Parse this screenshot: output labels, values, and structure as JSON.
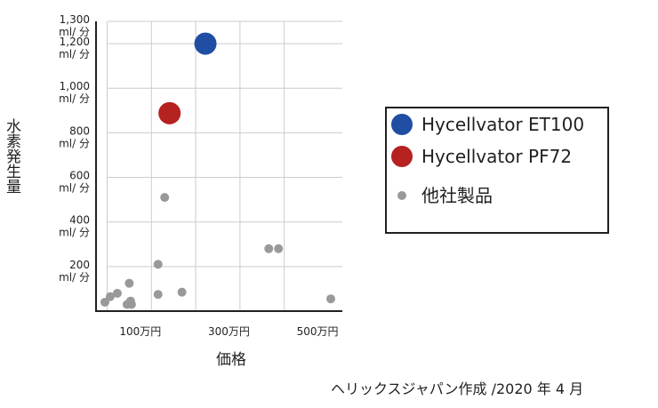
{
  "chart_data": {
    "type": "scatter",
    "title": "",
    "xlabel": "価格",
    "ylabel": "水素発生量",
    "xlim": [
      0,
      530
    ],
    "ylim": [
      0,
      1300
    ],
    "grid": true,
    "x_ticks": [
      {
        "value": 100,
        "label": "100万円"
      },
      {
        "value": 300,
        "label": "300万円"
      },
      {
        "value": 500,
        "label": "500万円"
      }
    ],
    "x_gridlines": [
      25,
      125,
      225,
      325,
      425
    ],
    "y_ticks": [
      {
        "value": 200,
        "label": "200",
        "unit": "ml/ 分"
      },
      {
        "value": 400,
        "label": "400",
        "unit": "ml/ 分"
      },
      {
        "value": 600,
        "label": "600",
        "unit": "ml/ 分"
      },
      {
        "value": 800,
        "label": "800",
        "unit": "ml/ 分"
      },
      {
        "value": 1000,
        "label": "1,000",
        "unit": "ml/ 分"
      },
      {
        "value": 1200,
        "label": "1,200",
        "unit": "ml/ 分"
      },
      {
        "value": 1300,
        "label": "1,300",
        "unit": "ml/ 分"
      }
    ],
    "legend_position": "right",
    "series": [
      {
        "name": "Hycellvator ET100",
        "color": "#1f4ea3",
        "marker_size": "large",
        "points": [
          {
            "x": 247,
            "y": 1200
          }
        ]
      },
      {
        "name": "Hycellvator PF72",
        "color": "#b5221f",
        "marker_size": "large",
        "points": [
          {
            "x": 166,
            "y": 888
          }
        ]
      },
      {
        "name": "他社製品",
        "color": "#999999",
        "marker_size": "small",
        "points": [
          {
            "x": 20,
            "y": 40
          },
          {
            "x": 32,
            "y": 65
          },
          {
            "x": 48,
            "y": 80
          },
          {
            "x": 75,
            "y": 125
          },
          {
            "x": 70,
            "y": 30
          },
          {
            "x": 80,
            "y": 30
          },
          {
            "x": 78,
            "y": 45
          },
          {
            "x": 140,
            "y": 210
          },
          {
            "x": 140,
            "y": 75
          },
          {
            "x": 155,
            "y": 510
          },
          {
            "x": 194,
            "y": 85
          },
          {
            "x": 390,
            "y": 280
          },
          {
            "x": 412,
            "y": 280
          },
          {
            "x": 532,
            "y": 55
          }
        ]
      }
    ]
  },
  "credit": "ヘリックスジャパン作成 /2020 年 4 月"
}
